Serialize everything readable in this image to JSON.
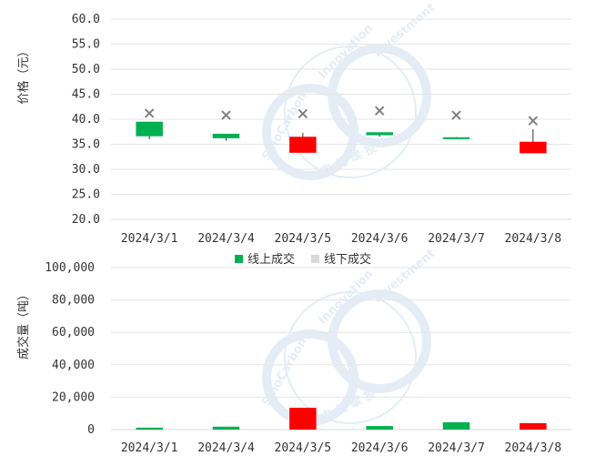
{
  "chart_data": [
    {
      "type": "candlestick",
      "ylabel": "价格（元）",
      "ylim": [
        20.0,
        60.0
      ],
      "yticks": [
        "20.0",
        "25.0",
        "30.0",
        "35.0",
        "40.0",
        "45.0",
        "50.0",
        "55.0",
        "60.0"
      ],
      "categories": [
        "2024/3/1",
        "2024/3/4",
        "2024/3/5",
        "2024/3/6",
        "2024/3/7",
        "2024/3/8"
      ],
      "grid": true,
      "candles": [
        {
          "date": "2024/3/1",
          "open": 36.6,
          "close": 39.5,
          "high": 39.5,
          "low": 36.0,
          "color": "#00b050"
        },
        {
          "date": "2024/3/4",
          "open": 36.2,
          "close": 37.1,
          "high": 37.1,
          "low": 35.7,
          "color": "#00b050"
        },
        {
          "date": "2024/3/5",
          "open": 36.5,
          "close": 33.3,
          "high": 37.3,
          "low": 33.3,
          "color": "#ff0000"
        },
        {
          "date": "2024/3/6",
          "open": 36.8,
          "close": 37.4,
          "high": 37.4,
          "low": 36.5,
          "color": "#00b050"
        },
        {
          "date": "2024/3/7",
          "open": 36.1,
          "close": 36.4,
          "high": 36.4,
          "low": 36.1,
          "color": "#00b050"
        },
        {
          "date": "2024/3/8",
          "open": 35.5,
          "close": 33.2,
          "high": 38.0,
          "low": 33.2,
          "color": "#ff0000"
        }
      ],
      "x_markers": [
        41.2,
        40.8,
        41.1,
        41.7,
        40.8,
        39.7
      ],
      "marker_color": "#808080"
    },
    {
      "type": "bar",
      "ylabel": "成交量（吨）",
      "ylim": [
        0,
        100000
      ],
      "yticks": [
        "0",
        "20,000",
        "40,000",
        "60,000",
        "80,000",
        "100,000"
      ],
      "categories": [
        "2024/3/1",
        "2024/3/4",
        "2024/3/5",
        "2024/3/6",
        "2024/3/7",
        "2024/3/8"
      ],
      "grid": true,
      "values": [
        1200,
        1800,
        13500,
        2200,
        4500,
        4000
      ],
      "colors": [
        "#00b050",
        "#00b050",
        "#ff0000",
        "#00b050",
        "#00b050",
        "#ff0000"
      ]
    }
  ],
  "legend": {
    "items": [
      {
        "label": "线上成交",
        "color": "#00b050"
      },
      {
        "label": "线下成交",
        "color": "#d9d9d9"
      }
    ]
  },
  "watermark": {
    "text_left": "SinoCarbon",
    "text_top": "Innovation",
    "text_right": "Investment",
    "text_bottom": "中 创 碳 投",
    "color": "#dce8f4"
  }
}
